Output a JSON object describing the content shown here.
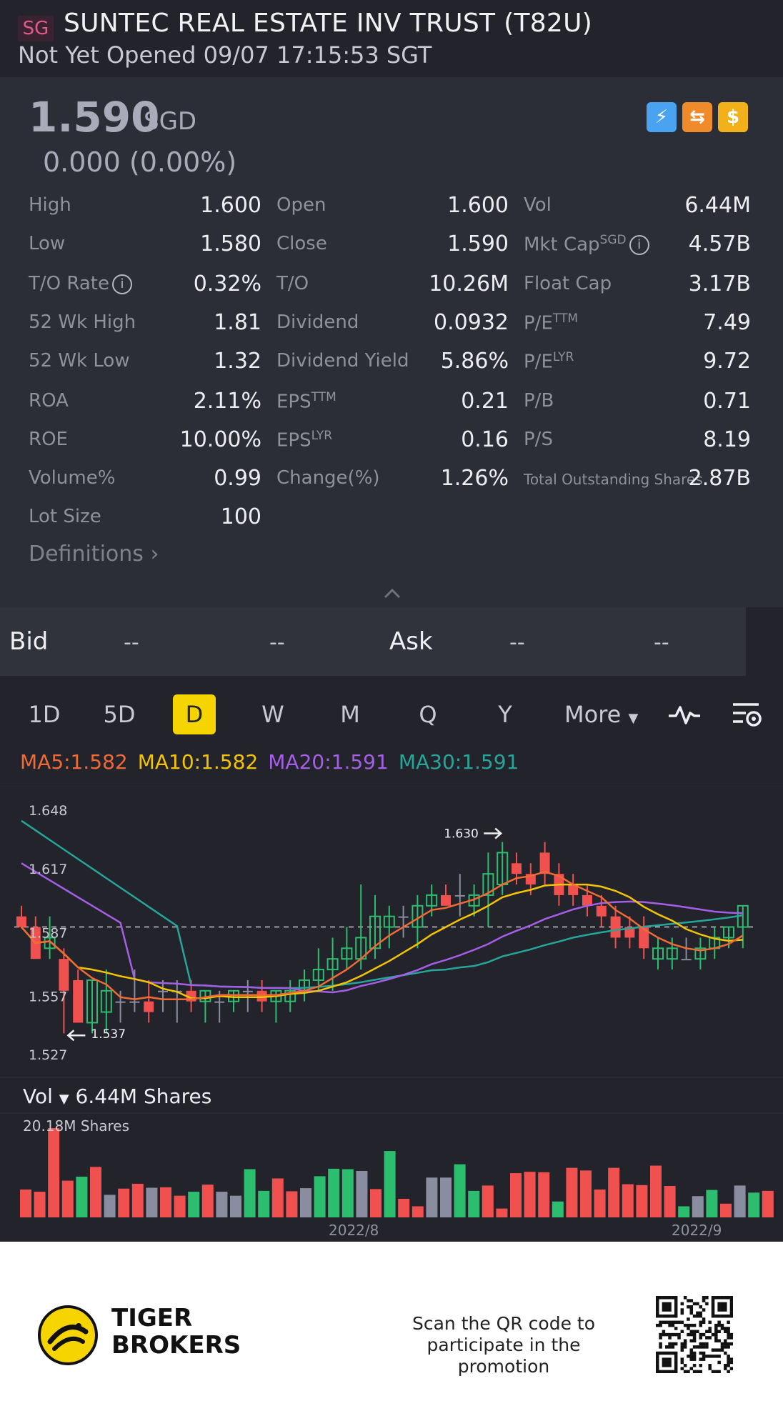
{
  "header": {
    "market_badge": "SG",
    "title": "SUNTEC REAL ESTATE INV TRUST (T82U)",
    "status": "Not Yet Opened 09/07 17:15:53 SGT"
  },
  "quote": {
    "price": "1.590",
    "currency": "SGD",
    "change": "0.000 (0.00%)",
    "feature_icons": [
      "lightning-icon",
      "exchange-icon",
      "dollar-icon"
    ]
  },
  "stats": {
    "col1": [
      {
        "label": "High",
        "value": "1.600"
      },
      {
        "label": "Low",
        "value": "1.580"
      },
      {
        "label": "T/O Rate",
        "value": "0.32%"
      },
      {
        "label": "52 Wk High",
        "value": "1.81"
      },
      {
        "label": "52 Wk Low",
        "value": "1.32"
      },
      {
        "label": "ROA",
        "value": "2.11%"
      },
      {
        "label": "ROE",
        "value": "10.00%"
      },
      {
        "label": "Volume%",
        "value": "0.99"
      },
      {
        "label": "Lot Size",
        "value": "100"
      }
    ],
    "col2": [
      {
        "label": "Open",
        "value": "1.600"
      },
      {
        "label": "Close",
        "value": "1.590"
      },
      {
        "label": "T/O",
        "value": "10.26M"
      },
      {
        "label": "Dividend",
        "value": "0.0932"
      },
      {
        "label": "Dividend Yield",
        "value": "5.86%"
      },
      {
        "label": "EPS",
        "sup": "TTM",
        "value": "0.21"
      },
      {
        "label": "EPS",
        "sup": "LYR",
        "value": "0.16"
      },
      {
        "label": "Change(%)",
        "value": "1.26%"
      }
    ],
    "col3": [
      {
        "label": "Vol",
        "value": "6.44M"
      },
      {
        "label": "Mkt Cap",
        "sup": "SGD",
        "value": "4.57B"
      },
      {
        "label": "Float Cap",
        "value": "3.17B"
      },
      {
        "label": "P/E",
        "sup": "TTM",
        "value": "7.49"
      },
      {
        "label": "P/E",
        "sup": "LYR",
        "value": "9.72"
      },
      {
        "label": "P/B",
        "value": "0.71"
      },
      {
        "label": "P/S",
        "value": "8.19"
      },
      {
        "label": "Total Outstanding Shares",
        "value": "2.87B"
      }
    ],
    "definitions": "Definitions"
  },
  "bidask": {
    "bid_label": "Bid",
    "bid_price": "--",
    "bid_size": "--",
    "ask_label": "Ask",
    "ask_price": "--",
    "ask_size": "--"
  },
  "periods": {
    "tabs": [
      "1D",
      "5D",
      "D",
      "W",
      "M",
      "Q",
      "Y"
    ],
    "active": "D",
    "more": "More"
  },
  "ma": {
    "ma5": "MA5:1.582",
    "ma10": "MA10:1.582",
    "ma20": "MA20:1.591",
    "ma30": "MA30:1.591",
    "colors": {
      "ma5": "#f06a35",
      "ma10": "#f5c400",
      "ma20": "#a55ee6",
      "ma30": "#26a69a"
    }
  },
  "chart_data": {
    "type": "candlestick",
    "y_ticks": [
      "1.648",
      "1.617",
      "1.587",
      "1.557",
      "1.527"
    ],
    "ylim": [
      1.527,
      1.648
    ],
    "high_marker": "1.630",
    "low_marker": "1.537",
    "x_labels": [
      "2022/8",
      "2022/9"
    ],
    "colors": {
      "up": "#2dbd6e",
      "down": "#f0514f",
      "flat": "#8a8da0"
    },
    "volume": {
      "header_label": "Vol",
      "header_value": "6.44M Shares",
      "max_label": "20.18M Shares"
    }
  },
  "footer": {
    "brand_line1": "TIGER",
    "brand_line2": "BROKERS",
    "promo": "Scan the QR code to participate in the promotion"
  }
}
